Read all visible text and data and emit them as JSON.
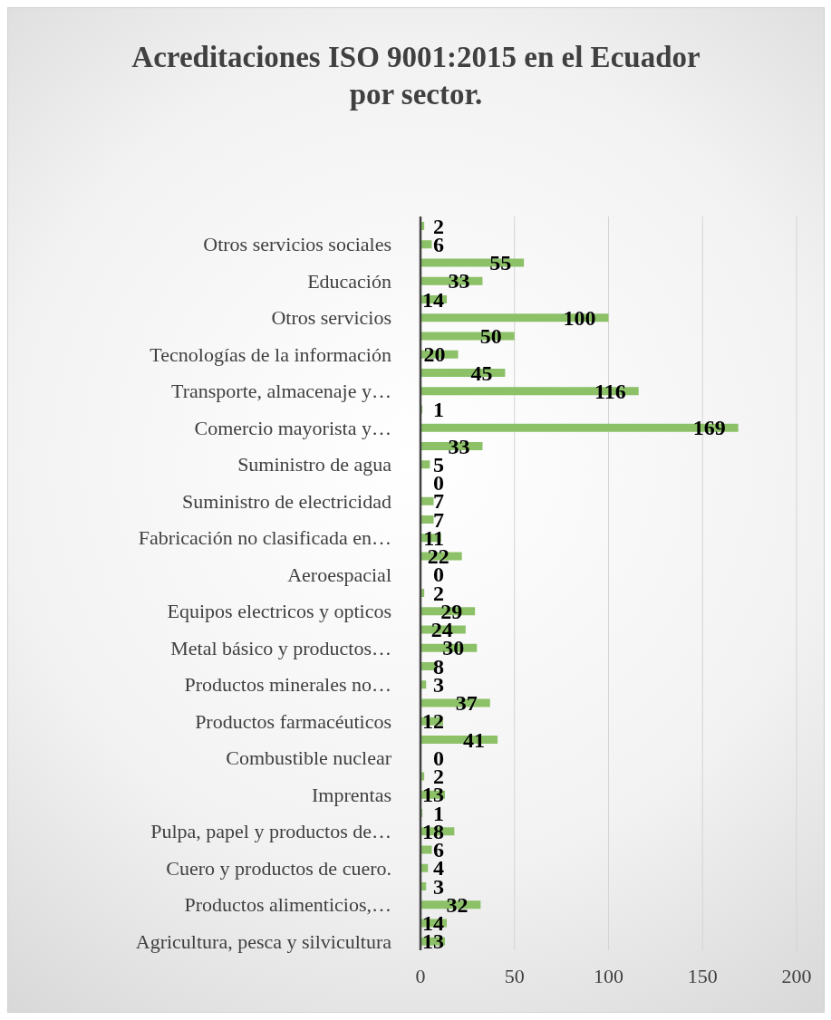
{
  "chart_data": {
    "type": "bar",
    "orientation": "horizontal",
    "title": "Acreditaciones ISO 9001:2015 en el Ecuador por sector.",
    "categories": [
      null,
      "Otros servicios sociales",
      null,
      "Educación",
      null,
      "Otros servicios",
      null,
      "Tecnologías de la información",
      null,
      "Transporte, almacenaje y…",
      null,
      "Comercio mayorista y…",
      null,
      "Suministro de agua",
      null,
      "Suministro de electricidad",
      null,
      "Fabricación no clasificada en…",
      null,
      "Aeroespacial",
      null,
      "Equipos electricos y opticos",
      null,
      "Metal básico y productos…",
      null,
      "Productos minerales no…",
      null,
      "Productos farmacéuticos",
      null,
      "Combustible nuclear",
      null,
      "Imprentas",
      null,
      "Pulpa, papel y productos de…",
      null,
      "Cuero y productos de cuero.",
      null,
      "Productos alimenticios,…",
      null,
      "Agricultura, pesca y silvicultura"
    ],
    "values": [
      2,
      6,
      55,
      33,
      14,
      100,
      50,
      20,
      45,
      116,
      1,
      169,
      33,
      5,
      0,
      7,
      7,
      11,
      22,
      0,
      2,
      29,
      24,
      30,
      8,
      3,
      37,
      12,
      41,
      0,
      2,
      13,
      1,
      18,
      6,
      4,
      3,
      32,
      14,
      13
    ],
    "color": "#8cc168",
    "xlim": [
      0,
      200
    ],
    "xticks": [
      0,
      50,
      100,
      150,
      200
    ],
    "grid": "x",
    "data_labels": true
  }
}
